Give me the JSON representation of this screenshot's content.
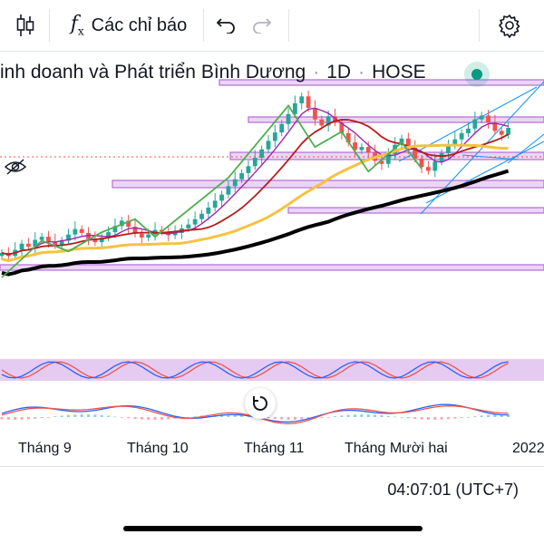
{
  "toolbar": {
    "indicators_label": "Các chỉ báo",
    "icons": [
      "candlestick-chart-icon",
      "function-icon",
      "undo-icon",
      "redo-icon",
      "settings-gear-icon"
    ]
  },
  "symbol": {
    "name": "inh doanh và Phát triển Bình Dương",
    "interval": "1D",
    "exchange": "HOSE",
    "separator": "·"
  },
  "time_axis": {
    "labels": [
      "Tháng 9",
      "Tháng 10",
      "Tháng 11",
      "Tháng Mười hai",
      "2022"
    ]
  },
  "status": {
    "clock": "04:07:01 (UTC+7)"
  },
  "colors": {
    "up": "#26a69a",
    "down": "#ef5350",
    "ma_fast": "#9c27b0",
    "ma_mid": "#b71c1c",
    "ma_slow": "#f5c242",
    "ma_long": "#000000",
    "zigzag": "#4caf50",
    "channel": "#2196f3",
    "zone": "#b46bd6"
  },
  "chart_data": {
    "type": "candlestick",
    "x_labels": [
      "Tháng 9",
      "Tháng 10",
      "Tháng 11",
      "Tháng Mười hai",
      "2022"
    ],
    "y_axis_visible": false,
    "series": [
      {
        "name": "price",
        "kind": "candles"
      },
      {
        "name": "ma-fast",
        "kind": "line"
      },
      {
        "name": "ma-mid",
        "kind": "line"
      },
      {
        "name": "ma-slow",
        "kind": "line"
      },
      {
        "name": "ma-long",
        "kind": "line"
      },
      {
        "name": "zigzag",
        "kind": "line"
      },
      {
        "name": "stochastic",
        "kind": "oscillator"
      },
      {
        "name": "macd",
        "kind": "oscillator"
      }
    ],
    "close": [
      23.2,
      22.8,
      23.6,
      24.4,
      24.0,
      24.9,
      25.3,
      24.7,
      24.2,
      24.8,
      25.6,
      26.3,
      25.8,
      25.0,
      24.6,
      25.2,
      25.9,
      26.7,
      27.4,
      26.6,
      25.7,
      25.2,
      25.6,
      26.2,
      26.0,
      25.5,
      25.8,
      26.4,
      26.9,
      27.6,
      28.3,
      29.1,
      30.0,
      30.8,
      31.9,
      32.8,
      33.6,
      34.5,
      35.6,
      36.7,
      37.8,
      38.9,
      40.0,
      41.3,
      42.7,
      43.6,
      42.1,
      40.6,
      39.8,
      41.0,
      40.2,
      38.8,
      37.6,
      36.6,
      37.0,
      36.3,
      35.2,
      34.8,
      36.1,
      37.3,
      38.1,
      36.9,
      35.5,
      34.4,
      33.9,
      35.1,
      36.2,
      37.2,
      38.0,
      38.8,
      39.4,
      40.6,
      41.1,
      40.2,
      39.1,
      38.6,
      39.5
    ]
  }
}
